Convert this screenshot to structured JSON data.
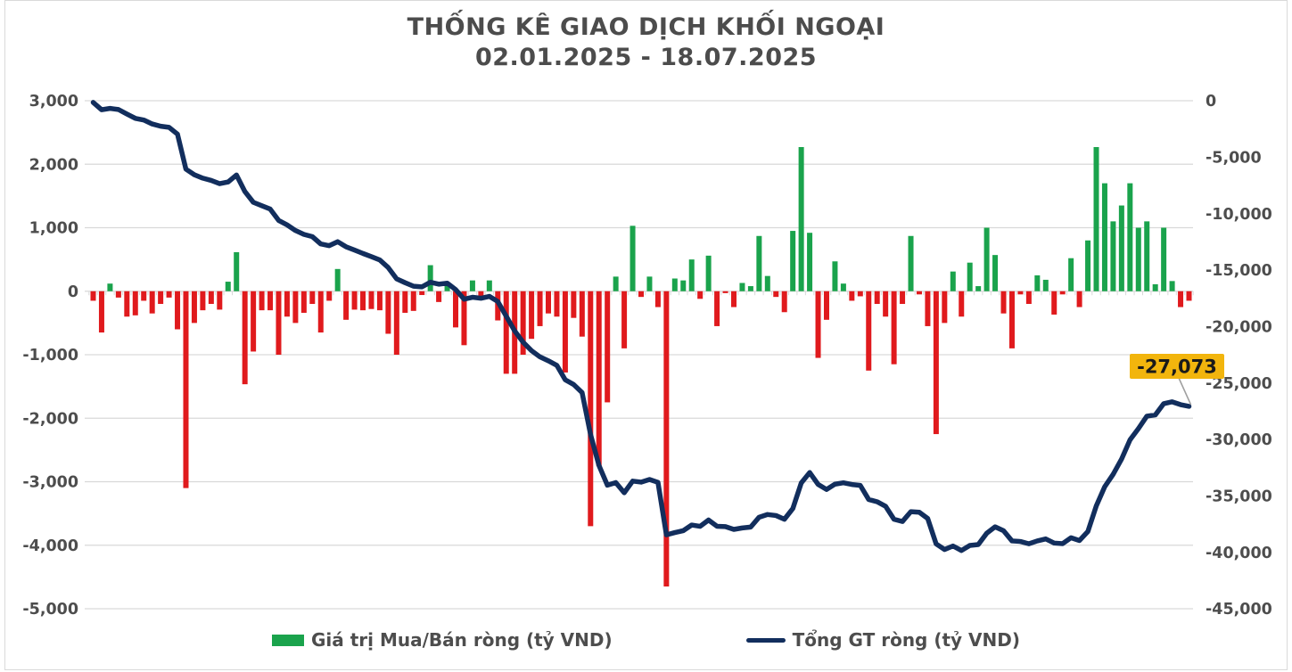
{
  "title": {
    "line1": "THỐNG KÊ GIAO DỊCH KHỐI NGOẠI",
    "line2": "02.01.2025 - 18.07.2025"
  },
  "legend": {
    "bar_label": "Giá trị Mua/Bán ròng (tỷ VND)",
    "line_label": "Tổng GT ròng (tỷ VND)"
  },
  "colors": {
    "positive_bar": "#1aa34c",
    "negative_bar": "#e01a1d",
    "line": "#122e5d",
    "grid": "#d9d9d9",
    "axis_text": "#4d4d4d",
    "title_text": "#4c4c4c",
    "annotation_bg": "#f2b50d",
    "annotation_text": "#1a1a1a",
    "leader_line": "#a0a0a0"
  },
  "chart_data": {
    "type": "bar+line",
    "title": "THỐNG KÊ GIAO DỊCH KHỐI NGOẠI 02.01.2025 - 18.07.2025",
    "grid": true,
    "legend_position": "bottom",
    "left_axis": {
      "label": "Giá trị Mua/Bán ròng (tỷ VND)",
      "max": 3000,
      "min": -5000,
      "tick_step": 1000,
      "ticks": [
        "3,000",
        "2,000",
        "1,000",
        "0",
        "-1,000",
        "-2,000",
        "-3,000",
        "-4,000",
        "-5,000"
      ]
    },
    "right_axis": {
      "label": "Tổng GT ròng (tỷ VND)",
      "max": 0,
      "min": -45000,
      "tick_step": 5000,
      "ticks": [
        "0",
        "-5,000",
        "-10,000",
        "-15,000",
        "-20,000",
        "-25,000",
        "-30,000",
        "-35,000",
        "-40,000",
        "-45,000"
      ]
    },
    "bar_series": {
      "name": "Giá trị Mua/Bán ròng (tỷ VND)",
      "note": "daily foreign net buy/sell value, estimated from pixels, 131 sessions 02.01.2025-18.07.2025",
      "values": [
        -150,
        -650,
        120,
        -100,
        -400,
        -380,
        -150,
        -350,
        -200,
        -100,
        -600,
        -3100,
        -500,
        -300,
        -200,
        -290,
        150,
        615,
        -1465,
        -950,
        -300,
        -300,
        -1000,
        -400,
        -500,
        -340,
        -200,
        -650,
        -150,
        350,
        -450,
        -290,
        -300,
        -280,
        -300,
        -670,
        -1000,
        -340,
        -310,
        -60,
        410,
        -170,
        90,
        -570,
        -850,
        170,
        -90,
        170,
        -460,
        -1300,
        -1300,
        -1000,
        -750,
        -550,
        -350,
        -400,
        -1280,
        -420,
        -715,
        -3700,
        -2750,
        -1750,
        230,
        -900,
        1030,
        -90,
        230,
        -250,
        -4650,
        200,
        170,
        500,
        -120,
        560,
        -550,
        -30,
        -250,
        130,
        80,
        870,
        240,
        -90,
        -330,
        950,
        2270,
        920,
        -1050,
        -450,
        470,
        120,
        -150,
        -80,
        -1250,
        -200,
        -400,
        -1150,
        -200,
        870,
        -50,
        -550,
        -2250,
        -500,
        310,
        -400,
        450,
        80,
        1000,
        570,
        -350,
        -900,
        -50,
        -200,
        250,
        180,
        -368,
        -50,
        520,
        -250,
        800,
        2270,
        1700,
        1100,
        1350,
        1700,
        1000,
        1100,
        110,
        1000,
        160,
        -250,
        -150
      ]
    },
    "line_series": {
      "name": "Tổng GT ròng (tỷ VND)",
      "derivation": "cumulative sum of bar_series values",
      "start_value": -150,
      "final_value": -27073
    },
    "annotation": {
      "text": "-27,073",
      "attached_to": "last point of cumulative line"
    }
  }
}
